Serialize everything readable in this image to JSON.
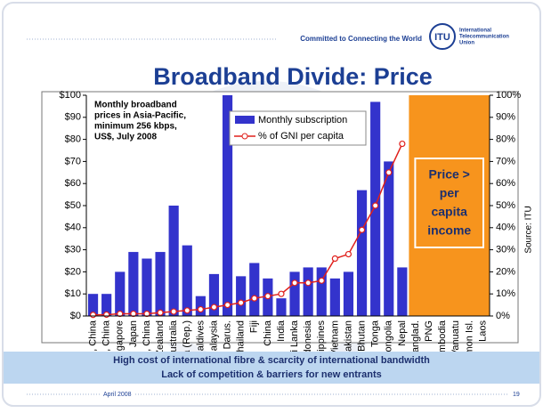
{
  "header": {
    "tagline": "Committed to Connecting the World",
    "logo_mark": "ITU",
    "logo_lines": [
      "International",
      "Telecommunication",
      "Union"
    ]
  },
  "title": "Broadband Divide: Price",
  "chart_data": {
    "type": "bar",
    "annotation_lines": [
      "Monthly broadband",
      "prices in Asia-Pacific,",
      "minimum 256 kbps,",
      "US$, July 2008"
    ],
    "box_lines": [
      "Price >",
      "per",
      "capita",
      "income"
    ],
    "source": "Source: ITU",
    "categories": [
      "Macao, China",
      "Taiwan, China",
      "Singapore",
      "Japan",
      "HK, China",
      "New Zealand",
      "Australia",
      "Korea (Rep.)",
      "Maldives",
      "Malaysia",
      "Brunei Darus.",
      "Thailand",
      "Fiji",
      "China",
      "India",
      "Sri Lanka",
      "Indonesia",
      "Philippines",
      "Vietnam",
      "Pakistan",
      "Bhutan",
      "Tonga",
      "Mongolia",
      "Nepal",
      "Banglad.",
      "PNG",
      "Cambodia",
      "Vanuatu",
      "Solomon Isl.",
      "Laos"
    ],
    "series": [
      {
        "name": "Monthly subscription",
        "color": "#3333cc",
        "values": [
          10,
          10,
          20,
          29,
          26,
          29,
          50,
          32,
          9,
          19,
          100,
          18,
          24,
          17,
          8,
          20,
          22,
          22,
          17,
          20,
          57,
          97,
          70,
          22,
          null,
          null,
          null,
          null,
          null,
          null
        ]
      },
      {
        "name": "% of GNI per capita",
        "color": "#e0201c",
        "axis": "y2",
        "type": "line",
        "values": [
          0.5,
          0.6,
          1,
          1,
          1,
          1.5,
          2,
          2.5,
          3,
          4,
          5,
          6,
          8,
          9,
          10,
          15,
          15,
          16,
          26,
          28,
          39,
          50,
          65,
          78,
          null,
          null,
          null,
          null,
          null,
          null
        ]
      }
    ],
    "ylim": [
      0,
      100
    ],
    "yticks": [
      {
        "value": 0,
        "label": "$0"
      },
      {
        "value": 10,
        "label": "$10"
      },
      {
        "value": 20,
        "label": "$20"
      },
      {
        "value": 30,
        "label": "$30"
      },
      {
        "value": 40,
        "label": "$40"
      },
      {
        "value": 50,
        "label": "$50"
      },
      {
        "value": 60,
        "label": "$60"
      },
      {
        "value": 70,
        "label": "$70"
      },
      {
        "value": 80,
        "label": "$80"
      },
      {
        "value": 90,
        "label": "$90"
      },
      {
        "value": 100,
        "label": "$100"
      }
    ],
    "y2lim": [
      0,
      100
    ],
    "y2ticks": [
      {
        "value": 0,
        "label": "0%"
      },
      {
        "value": 10,
        "label": "10%"
      },
      {
        "value": 20,
        "label": "20%"
      },
      {
        "value": 30,
        "label": "30%"
      },
      {
        "value": 40,
        "label": "40%"
      },
      {
        "value": 50,
        "label": "50%"
      },
      {
        "value": 60,
        "label": "60%"
      },
      {
        "value": 70,
        "label": "70%"
      },
      {
        "value": 80,
        "label": "80%"
      },
      {
        "value": 90,
        "label": "90%"
      },
      {
        "value": 100,
        "label": "100%"
      }
    ],
    "box_color": "#f7941d"
  },
  "band_lines": [
    "High cost of international fibre & scarcity of international bandwidth",
    "Lack of competition & barriers for new entrants"
  ],
  "footer": {
    "date": "April 2008",
    "page": "19"
  }
}
